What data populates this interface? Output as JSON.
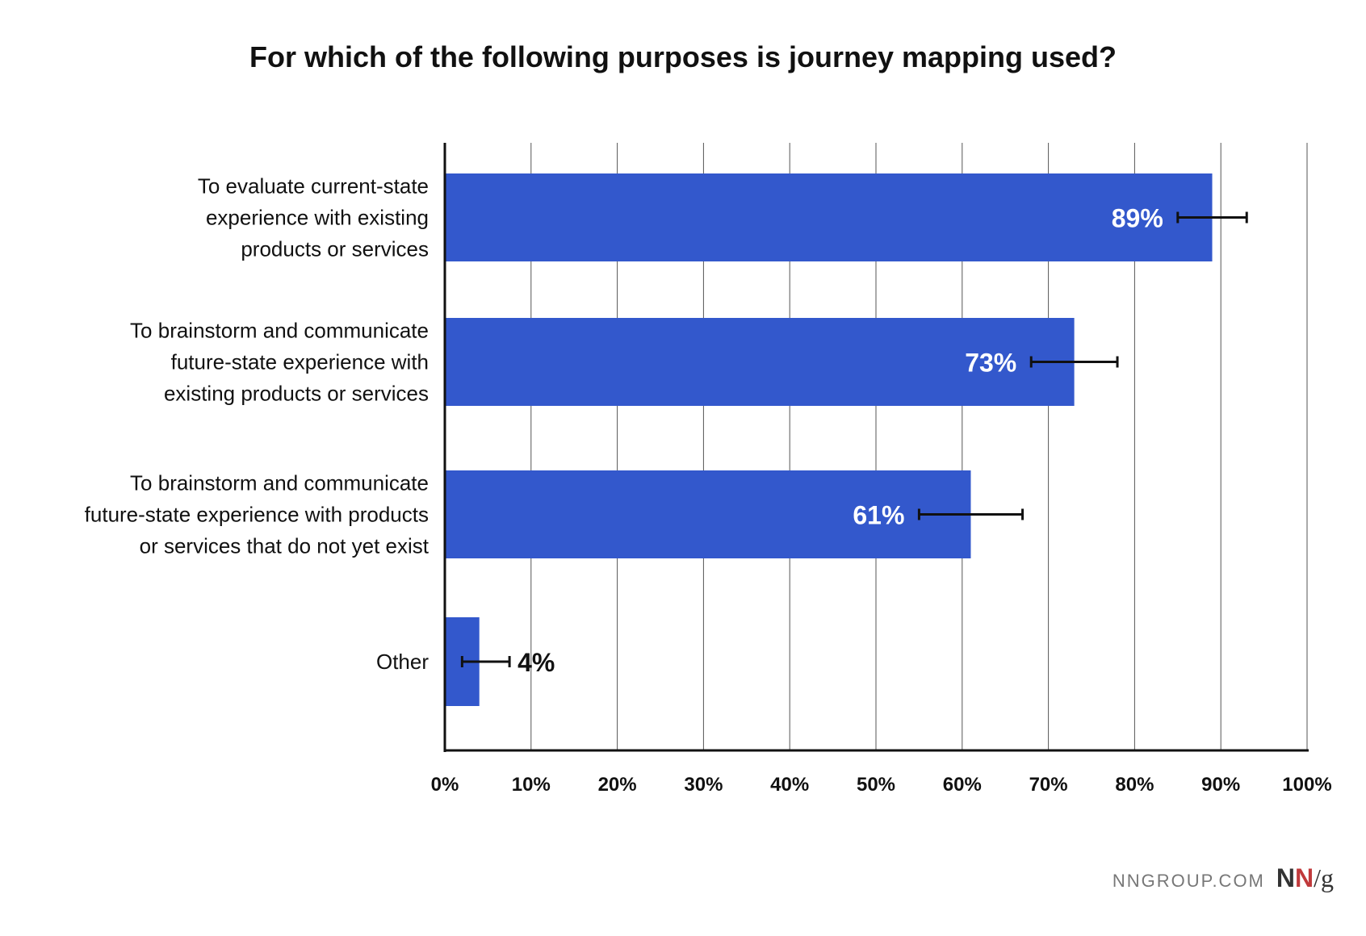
{
  "chart_data": {
    "type": "bar",
    "orientation": "horizontal",
    "title": "For which of the following purposes is journey mapping used?",
    "categories": [
      [
        "To evaluate current-state",
        "experience with existing",
        "products or services"
      ],
      [
        "To brainstorm and communicate",
        "future-state experience with",
        "existing products or services"
      ],
      [
        "To brainstorm and communicate",
        "future-state experience with products",
        "or services that do not yet exist"
      ],
      [
        "Other"
      ]
    ],
    "values": [
      89,
      73,
      61,
      4
    ],
    "value_labels": [
      "89%",
      "73%",
      "61%",
      "4%"
    ],
    "error_bars": [
      [
        85,
        93
      ],
      [
        68,
        78
      ],
      [
        55,
        67
      ],
      [
        2,
        7.5
      ]
    ],
    "xlim": [
      0,
      100
    ],
    "x_ticks": [
      "0%",
      "10%",
      "20%",
      "30%",
      "40%",
      "50%",
      "60%",
      "70%",
      "80%",
      "90%",
      "100%"
    ],
    "grid": "vertical",
    "bar_color": "#3358cc"
  },
  "footer": {
    "site": "NNGROUP.COM",
    "logo": "NN/g"
  }
}
